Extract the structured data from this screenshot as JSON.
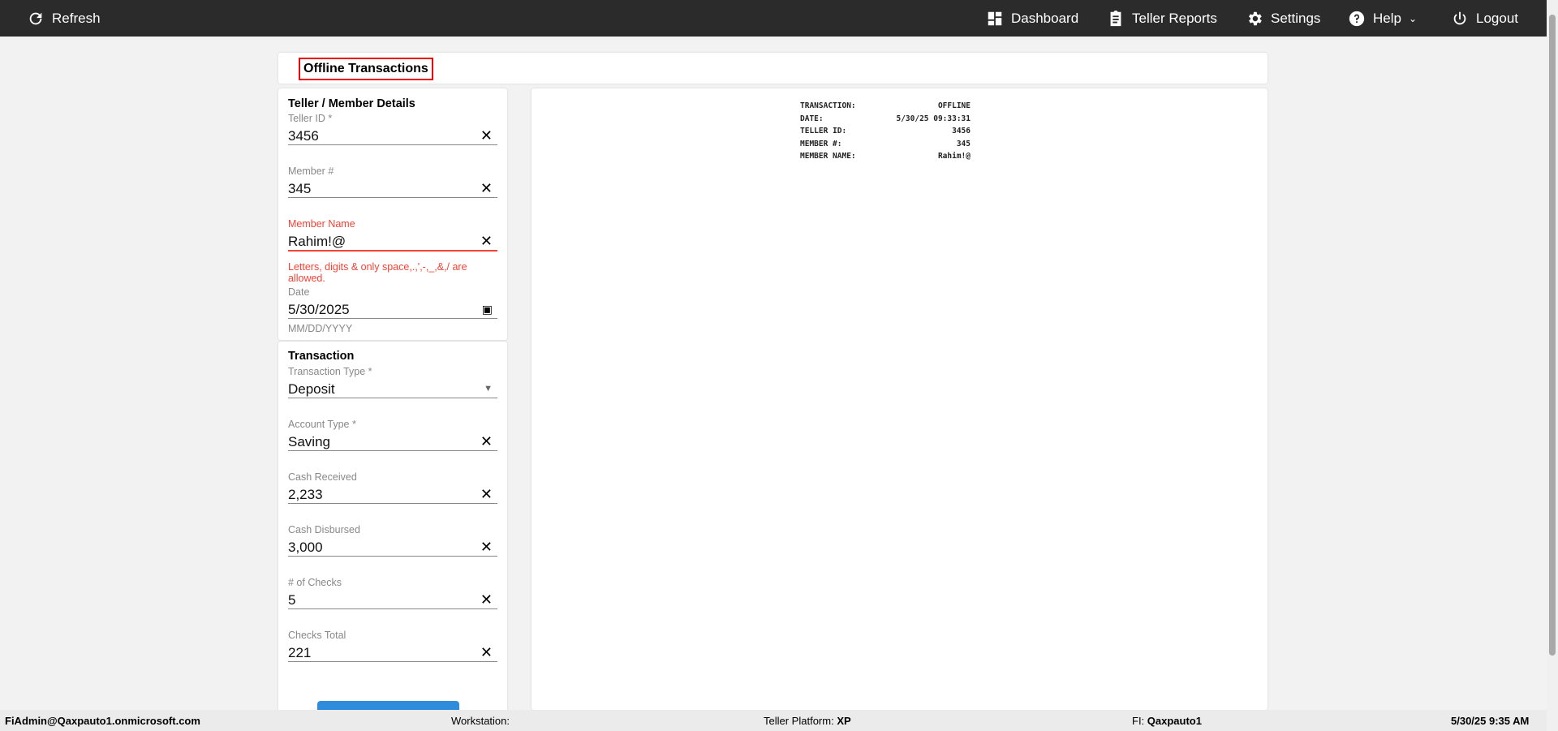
{
  "topbar": {
    "refresh": "Refresh",
    "dashboard": "Dashboard",
    "teller_reports": "Teller Reports",
    "settings": "Settings",
    "help": "Help",
    "logout": "Logout"
  },
  "page_title": "Offline Transactions",
  "member_section": {
    "title": "Teller / Member Details",
    "teller_id": {
      "label": "Teller ID *",
      "value": "3456"
    },
    "member_no": {
      "label": "Member #",
      "value": "345"
    },
    "member_name": {
      "label": "Member Name",
      "value": "Rahim!@",
      "error": "Letters, digits & only space,.,',-,_,&,/ are allowed."
    },
    "date": {
      "label": "Date",
      "value": "5/30/2025",
      "hint": "MM/DD/YYYY"
    }
  },
  "transaction_section": {
    "title": "Transaction",
    "fields": [
      {
        "label": "Transaction Type *",
        "value": "Deposit"
      },
      {
        "label": "Account Type *",
        "value": "Saving"
      },
      {
        "label": "Cash Received",
        "value": "2,233"
      },
      {
        "label": "Cash Disbursed",
        "value": "3,000"
      },
      {
        "label": "# of Checks",
        "value": "5"
      },
      {
        "label": "Checks Total",
        "value": "221"
      }
    ]
  },
  "receipt": [
    {
      "k": "TRANSACTION:",
      "v": "OFFLINE"
    },
    {
      "k": "DATE:",
      "v": "5/30/25 09:33:31"
    },
    {
      "k": "TELLER ID:",
      "v": "3456"
    },
    {
      "k": "MEMBER #:",
      "v": "345"
    },
    {
      "k": "MEMBER NAME:",
      "v": "Rahim!@"
    }
  ],
  "footer": {
    "user": "FiAdmin@Qaxpauto1.onmicrosoft.com",
    "workstation_label": "Workstation:",
    "platform_label": "Teller Platform:",
    "platform": "XP",
    "fi_label": "FI:",
    "fi": "Qaxpauto1",
    "datetime": "5/30/25 9:35 AM"
  },
  "colors": {
    "topbar": "#2b2b2b",
    "error": "#f44336",
    "primary": "#2f8bdb"
  }
}
